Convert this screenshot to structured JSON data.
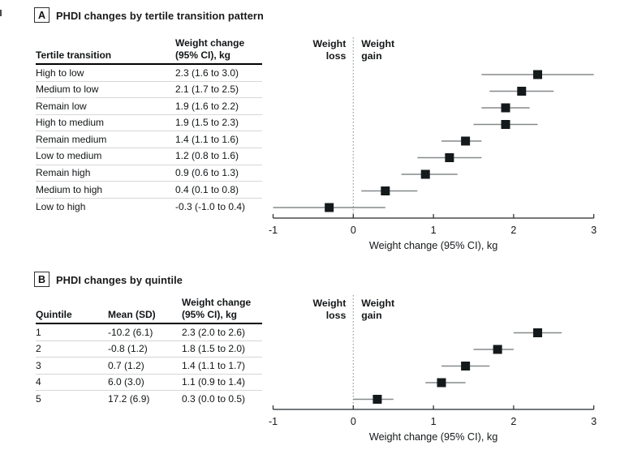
{
  "colors": {
    "marker": "#14191b",
    "ci_line": "#85898b",
    "axis": "#24282a",
    "reference_line": "#9aa0a3",
    "row_rule": "#d4d7d8",
    "header_rule": "#000000",
    "text": "#121517"
  },
  "panels": [
    {
      "label": "A",
      "title": "PHDI changes by tertile transition pattern",
      "table": {
        "col_headers": [
          "Tertile transition",
          "Weight change\n(95% CI), kg"
        ],
        "rows": [
          {
            "label": "High to low",
            "value": "2.3 (1.6 to 3.0)"
          },
          {
            "label": "Medium to low",
            "value": "2.1 (1.7 to 2.5)"
          },
          {
            "label": "Remain low",
            "value": "1.9 (1.6 to 2.2)"
          },
          {
            "label": "High to medium",
            "value": "1.9 (1.5 to 2.3)"
          },
          {
            "label": "Remain medium",
            "value": "1.4 (1.1 to 1.6)"
          },
          {
            "label": "Low to medium",
            "value": "1.2 (0.8 to 1.6)"
          },
          {
            "label": "Remain high",
            "value": "0.9 (0.6 to 1.3)"
          },
          {
            "label": "Medium to high",
            "value": "0.4 (0.1 to 0.8)"
          },
          {
            "label": "Low to high",
            "value": "-0.3 (-1.0 to 0.4)"
          }
        ]
      }
    },
    {
      "label": "B",
      "title": "PHDI changes by quintile",
      "table": {
        "col_headers": [
          "Quintile",
          "Mean (SD)",
          "Weight change\n(95% CI), kg"
        ],
        "rows": [
          {
            "label": "1",
            "mean_sd": "-10.2 (6.1)",
            "value": "2.3 (2.0 to 2.6)"
          },
          {
            "label": "2",
            "mean_sd": "-0.8 (1.2)",
            "value": "1.8 (1.5 to 2.0)"
          },
          {
            "label": "3",
            "mean_sd": "0.7 (1.2)",
            "value": "1.4 (1.1 to 1.7)"
          },
          {
            "label": "4",
            "mean_sd": "6.0 (3.0)",
            "value": "1.1 (0.9 to 1.4)"
          },
          {
            "label": "5",
            "mean_sd": "17.2 (6.9)",
            "value": "0.3 (0.0 to 0.5)"
          }
        ]
      }
    }
  ],
  "chart_data": [
    {
      "type": "scatter",
      "subtype": "forest",
      "title": "PHDI changes by tertile transition pattern",
      "categories": [
        "High to low",
        "Medium to low",
        "Remain low",
        "High to medium",
        "Remain medium",
        "Low to medium",
        "Remain high",
        "Medium to high",
        "Low to high"
      ],
      "points": [
        {
          "label": "High to low",
          "estimate": 2.3,
          "ci_low": 1.6,
          "ci_high": 3.0
        },
        {
          "label": "Medium to low",
          "estimate": 2.1,
          "ci_low": 1.7,
          "ci_high": 2.5
        },
        {
          "label": "Remain low",
          "estimate": 1.9,
          "ci_low": 1.6,
          "ci_high": 2.2
        },
        {
          "label": "High to medium",
          "estimate": 1.9,
          "ci_low": 1.5,
          "ci_high": 2.3
        },
        {
          "label": "Remain medium",
          "estimate": 1.4,
          "ci_low": 1.1,
          "ci_high": 1.6
        },
        {
          "label": "Low to medium",
          "estimate": 1.2,
          "ci_low": 0.8,
          "ci_high": 1.6
        },
        {
          "label": "Remain high",
          "estimate": 0.9,
          "ci_low": 0.6,
          "ci_high": 1.3
        },
        {
          "label": "Medium to high",
          "estimate": 0.4,
          "ci_low": 0.1,
          "ci_high": 0.8
        },
        {
          "label": "Low to high",
          "estimate": -0.3,
          "ci_low": -1.0,
          "ci_high": 0.4
        }
      ],
      "xlabel": "Weight change (95% CI), kg",
      "xlim": [
        -1,
        3
      ],
      "xticks": [
        -1,
        0,
        1,
        2,
        3
      ],
      "reference_line_x": 0,
      "region_labels": {
        "left": "Weight\nloss",
        "right": "Weight\ngain"
      },
      "grid": false,
      "legend": "none"
    },
    {
      "type": "scatter",
      "subtype": "forest",
      "title": "PHDI changes by quintile",
      "categories": [
        "1",
        "2",
        "3",
        "4",
        "5"
      ],
      "points": [
        {
          "label": "1",
          "estimate": 2.3,
          "ci_low": 2.0,
          "ci_high": 2.6
        },
        {
          "label": "2",
          "estimate": 1.8,
          "ci_low": 1.5,
          "ci_high": 2.0
        },
        {
          "label": "3",
          "estimate": 1.4,
          "ci_low": 1.1,
          "ci_high": 1.7
        },
        {
          "label": "4",
          "estimate": 1.1,
          "ci_low": 0.9,
          "ci_high": 1.4
        },
        {
          "label": "5",
          "estimate": 0.3,
          "ci_low": 0.0,
          "ci_high": 0.5
        }
      ],
      "xlabel": "Weight change (95% CI), kg",
      "xlim": [
        -1,
        3
      ],
      "xticks": [
        -1,
        0,
        1,
        2,
        3
      ],
      "reference_line_x": 0,
      "region_labels": {
        "left": "Weight\nloss",
        "right": "Weight\ngain"
      },
      "grid": false,
      "legend": "none"
    }
  ]
}
